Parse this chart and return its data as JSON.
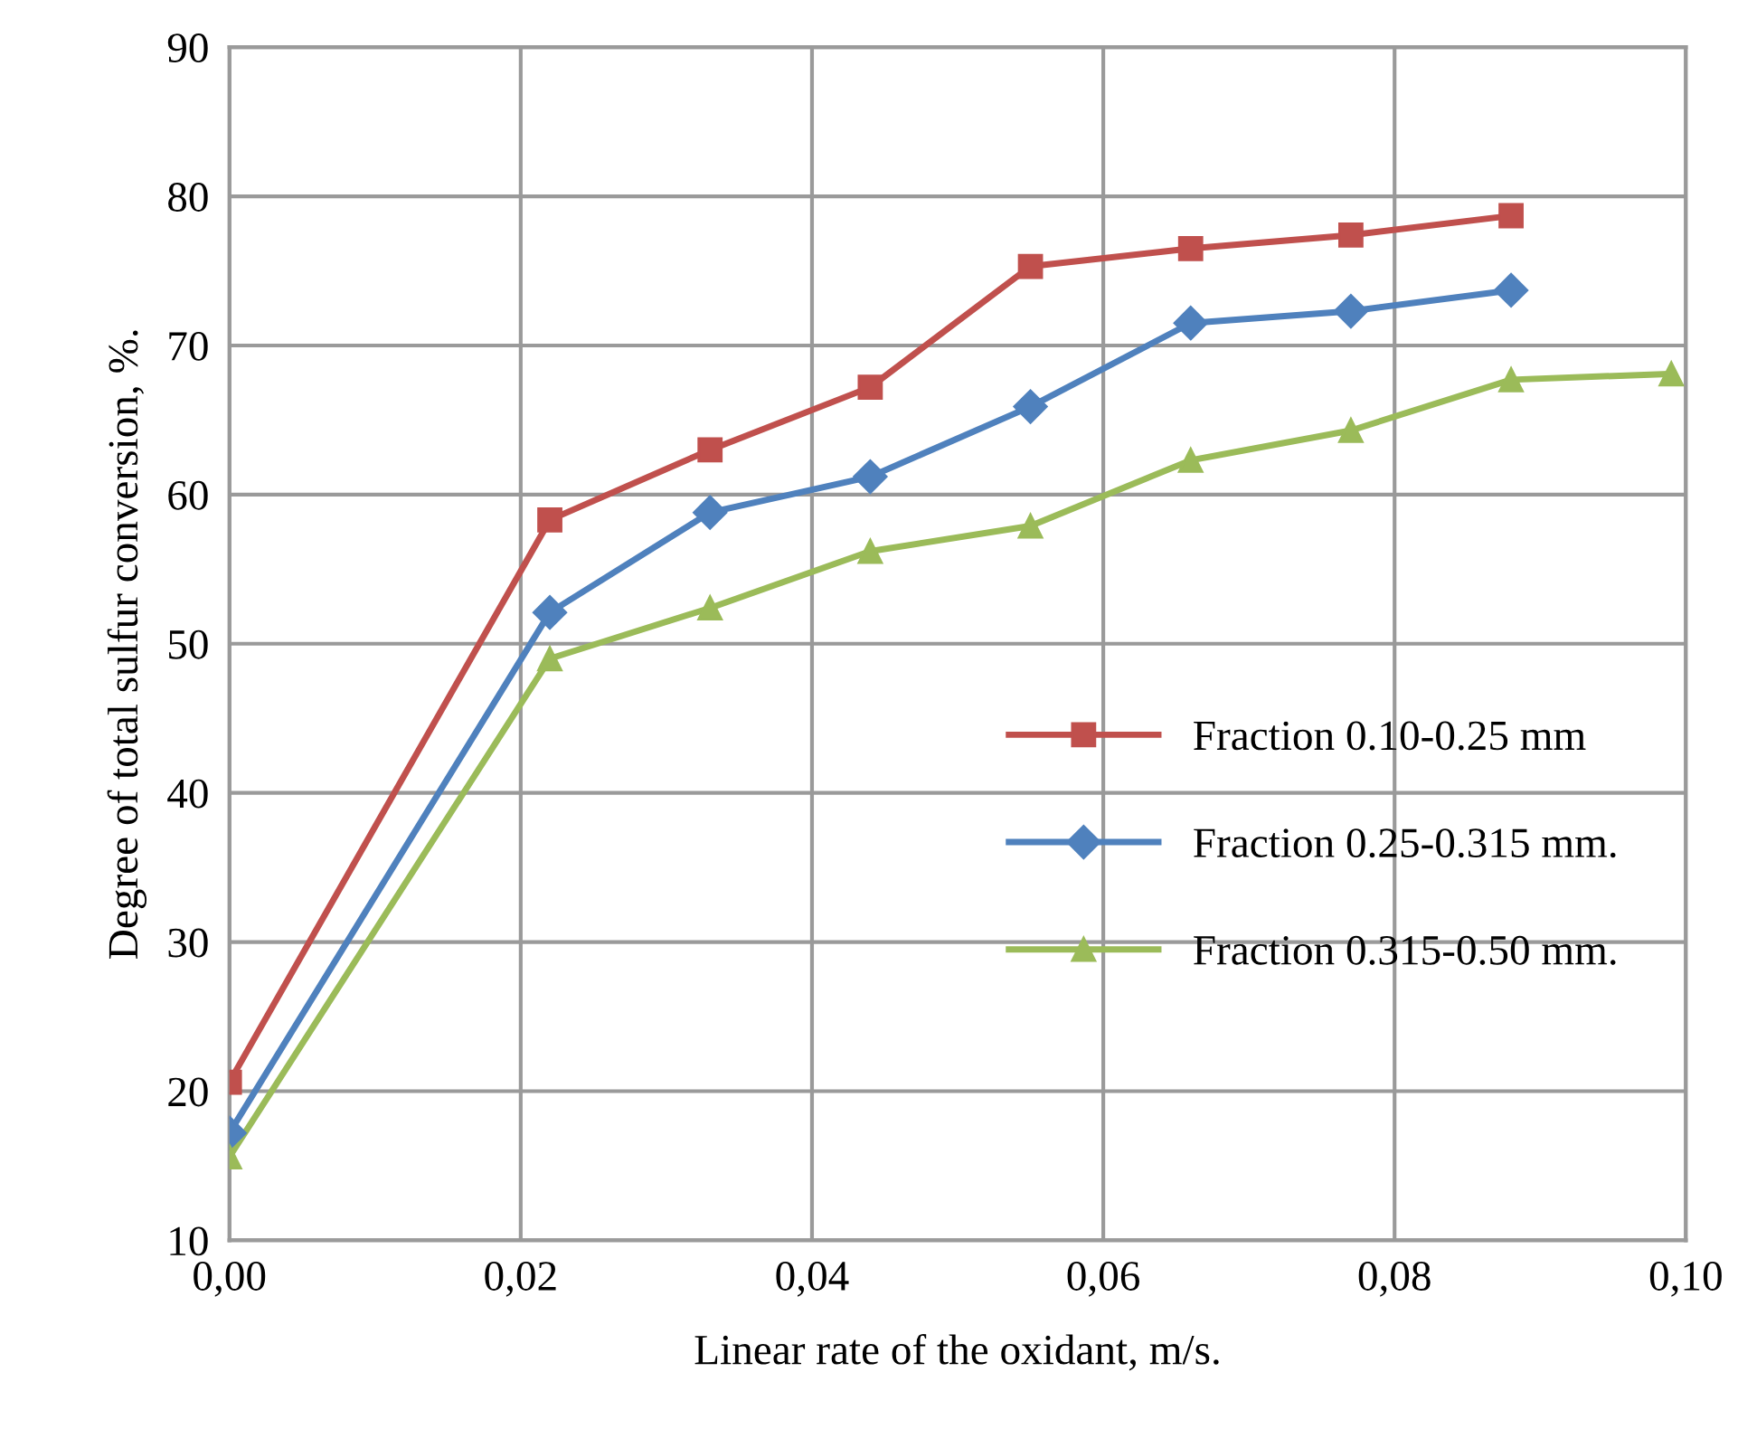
{
  "chart_data": {
    "type": "line",
    "xlabel": "Linear rate of the oxidant, m/s.",
    "ylabel": "Degree of total sulfur conversion, %.",
    "xlim": [
      0,
      0.1
    ],
    "ylim": [
      10,
      90
    ],
    "xticks": [
      {
        "value": 0,
        "label": "0,00"
      },
      {
        "value": 0.02,
        "label": "0,02"
      },
      {
        "value": 0.04,
        "label": "0,04"
      },
      {
        "value": 0.06,
        "label": "0,06"
      },
      {
        "value": 0.08,
        "label": "0,08"
      },
      {
        "value": 0.1,
        "label": "0,10"
      }
    ],
    "yticks": [
      10,
      20,
      30,
      40,
      50,
      60,
      70,
      80,
      90
    ],
    "grid": true,
    "legend": "right",
    "series": [
      {
        "name": "Fraction 0.10-0.25 mm",
        "color": "#c0504d",
        "marker": "square",
        "x": [
          0,
          0.022,
          0.033,
          0.044,
          0.055,
          0.066,
          0.077,
          0.088
        ],
        "values": [
          20.6,
          58.3,
          63.0,
          67.2,
          75.3,
          76.5,
          77.4,
          78.7
        ]
      },
      {
        "name": "Fraction 0.25-0.315 mm.",
        "color": "#4f81bd",
        "marker": "diamond",
        "x": [
          0,
          0.022,
          0.033,
          0.044,
          0.055,
          0.066,
          0.077,
          0.088
        ],
        "values": [
          17.2,
          52.1,
          58.8,
          61.2,
          65.9,
          71.5,
          72.3,
          73.7
        ]
      },
      {
        "name": "Fraction 0.315-0.50 mm.",
        "color": "#9bbb59",
        "marker": "triangle",
        "x": [
          0,
          0.022,
          0.033,
          0.044,
          0.055,
          0.066,
          0.077,
          0.088,
          0.099
        ],
        "values": [
          15.6,
          49.0,
          52.4,
          56.2,
          57.9,
          62.3,
          64.3,
          67.7,
          68.1
        ]
      }
    ]
  }
}
